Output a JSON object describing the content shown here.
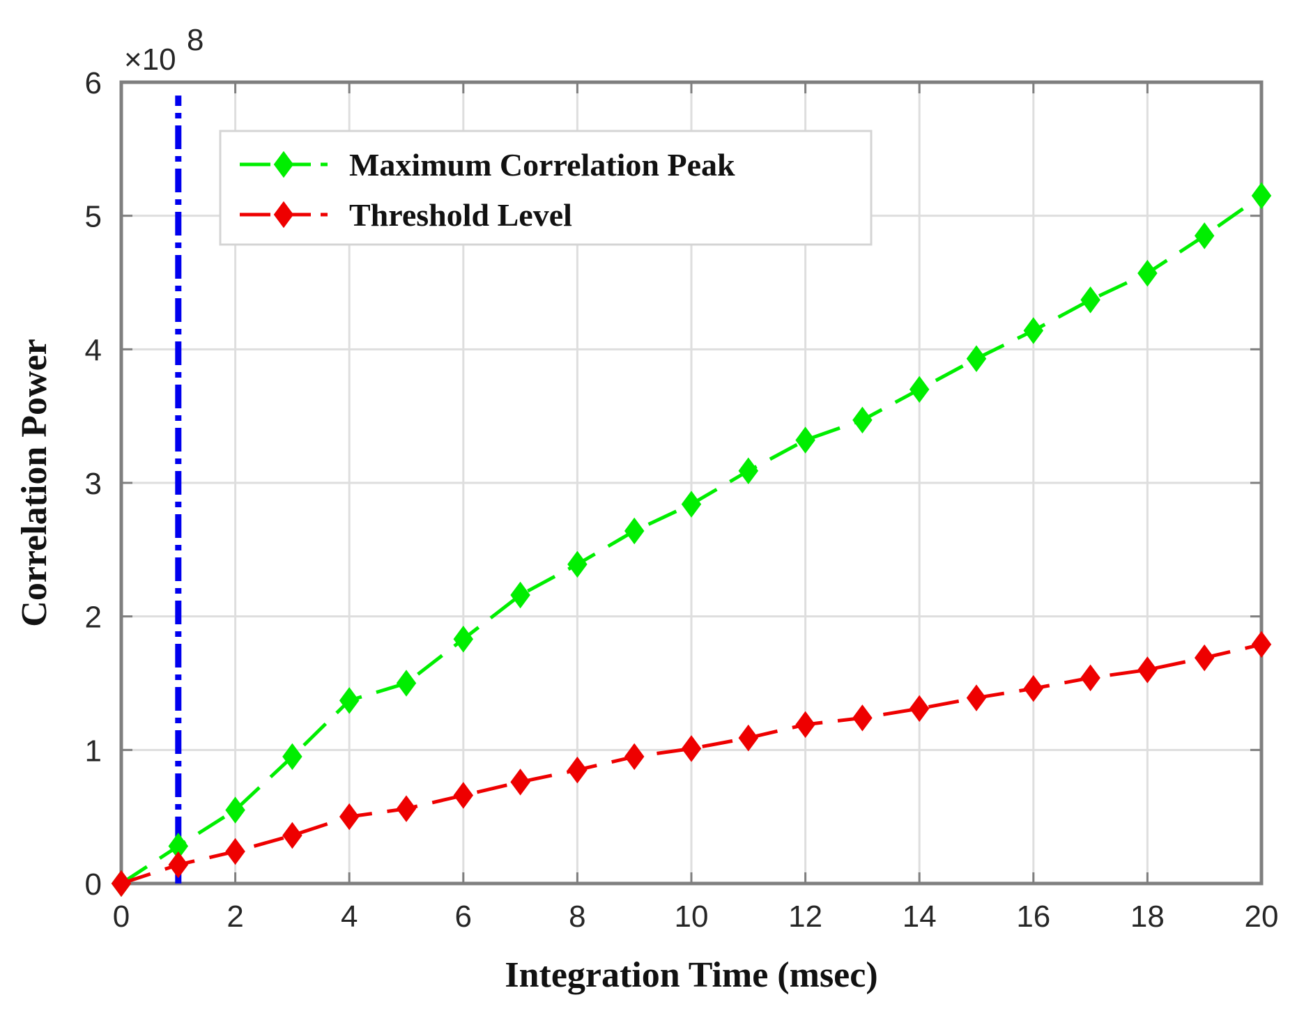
{
  "chart_data": {
    "type": "line",
    "title": "",
    "xlabel": "Integration Time (msec)",
    "ylabel": "Correlation Power",
    "xlim": [
      0,
      20
    ],
    "ylim": [
      0,
      6
    ],
    "xticks": [
      0,
      2,
      4,
      6,
      8,
      10,
      12,
      14,
      16,
      18,
      20
    ],
    "xtick_labels": [
      "0",
      "2",
      "4",
      "6",
      "8",
      "10",
      "12",
      "14",
      "16",
      "18",
      "20"
    ],
    "yticks": [
      0,
      1,
      2,
      3,
      4,
      5,
      6
    ],
    "ytick_labels": [
      "0",
      "1",
      "2",
      "3",
      "4",
      "5",
      "6"
    ],
    "y_exponent_label": "×10",
    "y_exponent_power": "8",
    "grid": true,
    "legend_position": "top-left",
    "x": [
      0,
      1,
      2,
      3,
      4,
      5,
      6,
      7,
      8,
      9,
      10,
      11,
      12,
      13,
      14,
      15,
      16,
      17,
      18,
      19,
      20
    ],
    "series": [
      {
        "name": "Maximum Correlation Peak",
        "color": "#00ee00",
        "line_style": "dashed",
        "marker": "diamond",
        "values": [
          0.0,
          0.28,
          0.55,
          0.95,
          1.37,
          1.5,
          1.83,
          2.16,
          2.39,
          2.64,
          2.84,
          3.09,
          3.32,
          3.47,
          3.7,
          3.93,
          4.14,
          4.37,
          4.57,
          4.85,
          5.15
        ]
      },
      {
        "name": "Threshold Level",
        "color": "#ee0000",
        "line_style": "dashed",
        "marker": "diamond",
        "values": [
          0.0,
          0.14,
          0.24,
          0.36,
          0.5,
          0.56,
          0.66,
          0.76,
          0.85,
          0.95,
          1.01,
          1.09,
          1.19,
          1.24,
          1.31,
          1.39,
          1.46,
          1.54,
          1.6,
          1.69,
          1.79
        ]
      }
    ],
    "annotations": [
      {
        "type": "vertical-line",
        "x": 1,
        "y_from": 0,
        "y_to": 5.9,
        "color": "#0000ee",
        "line_style": "dash-dot"
      }
    ]
  }
}
